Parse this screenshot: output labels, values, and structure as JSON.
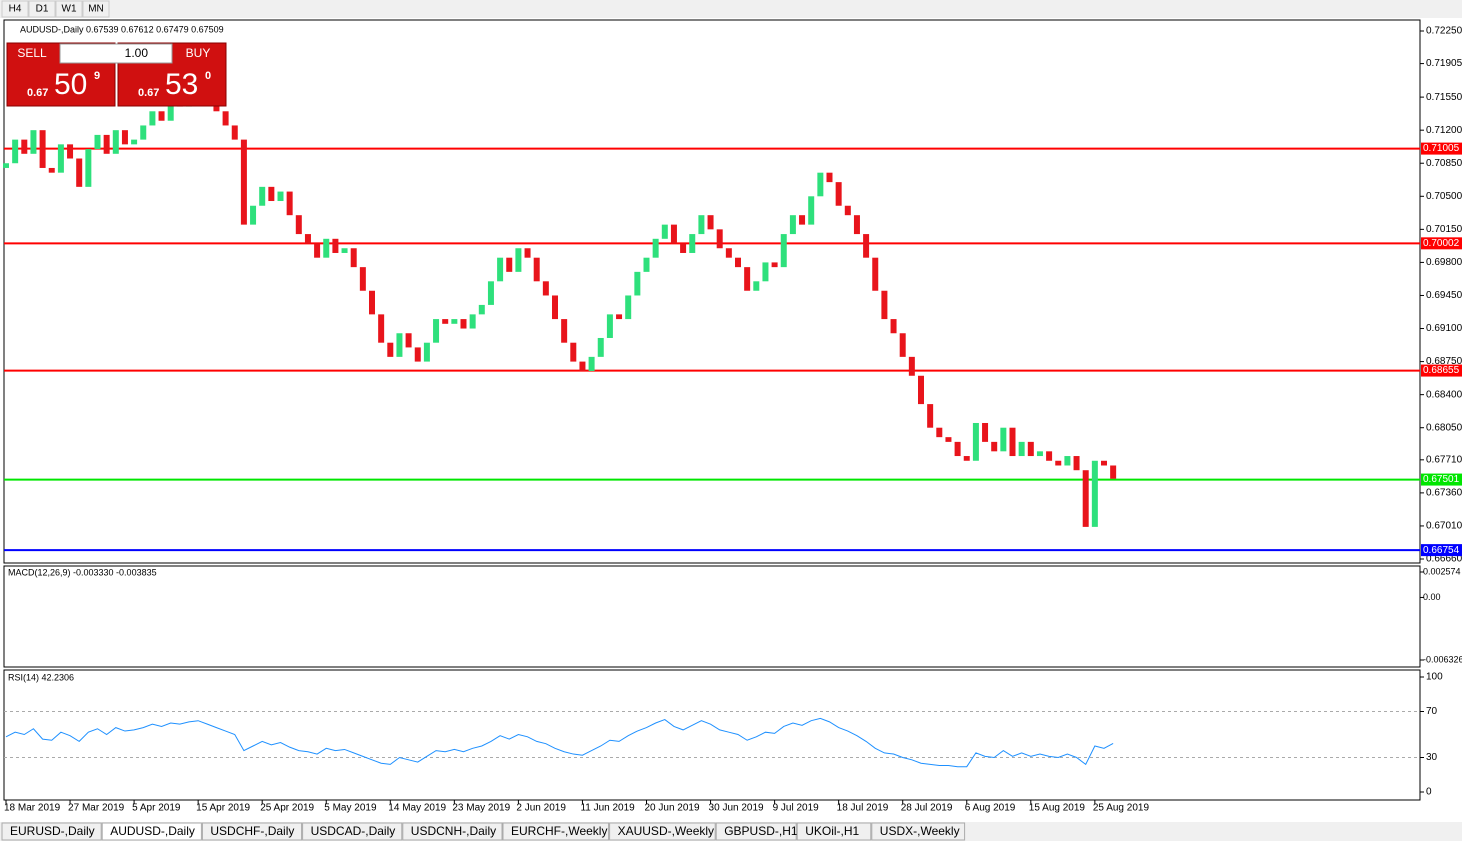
{
  "toolbar": {
    "timeframes": [
      "H4",
      "D1",
      "W1",
      "MN"
    ]
  },
  "trade_panel": {
    "sell_label": "SELL",
    "buy_label": "BUY",
    "lot": "1.00",
    "sell": {
      "prefix": "0.67",
      "big": "50",
      "sup": "9"
    },
    "buy": {
      "prefix": "0.67",
      "big": "53",
      "sup": "0"
    }
  },
  "chart_data": [
    {
      "type": "candlestick",
      "title": "AUDUSD-,Daily 0.67539 0.67612 0.67479 0.67509",
      "up_color": "#2ee07c",
      "down_color": "#e8141b",
      "open": [
        0.708,
        0.7085,
        0.711,
        0.7095,
        0.712,
        0.708,
        0.7075,
        0.7105,
        0.709,
        0.706,
        0.71,
        0.7115,
        0.7095,
        0.712,
        0.7105,
        0.711,
        0.7125,
        0.714,
        0.713,
        0.715,
        0.7145,
        0.7155,
        0.716,
        0.715,
        0.714,
        0.7125,
        0.711,
        0.702,
        0.704,
        0.706,
        0.7045,
        0.7055,
        0.703,
        0.701,
        0.7,
        0.6985,
        0.7005,
        0.699,
        0.6995,
        0.6975,
        0.695,
        0.6925,
        0.6895,
        0.688,
        0.6905,
        0.689,
        0.6875,
        0.6895,
        0.692,
        0.6915,
        0.692,
        0.691,
        0.6925,
        0.6935,
        0.696,
        0.6985,
        0.697,
        0.6995,
        0.6985,
        0.696,
        0.6945,
        0.692,
        0.6895,
        0.6875,
        0.6865,
        0.688,
        0.69,
        0.6925,
        0.692,
        0.6945,
        0.697,
        0.6985,
        0.7005,
        0.702,
        0.7,
        0.699,
        0.701,
        0.703,
        0.7015,
        0.6995,
        0.6985,
        0.6975,
        0.695,
        0.696,
        0.698,
        0.6975,
        0.701,
        0.703,
        0.702,
        0.705,
        0.7075,
        0.7065,
        0.704,
        0.703,
        0.701,
        0.6985,
        0.695,
        0.692,
        0.6905,
        0.688,
        0.686,
        0.683,
        0.6805,
        0.6795,
        0.679,
        0.6775,
        0.677,
        0.681,
        0.679,
        0.678,
        0.6805,
        0.6775,
        0.679,
        0.6775,
        0.678,
        0.677,
        0.6765,
        0.6775,
        0.676,
        0.67,
        0.677,
        0.6765
      ],
      "close": [
        0.7085,
        0.711,
        0.7095,
        0.712,
        0.708,
        0.7075,
        0.7105,
        0.709,
        0.706,
        0.71,
        0.7115,
        0.7095,
        0.712,
        0.7105,
        0.711,
        0.7125,
        0.714,
        0.713,
        0.715,
        0.7145,
        0.7155,
        0.716,
        0.715,
        0.714,
        0.7125,
        0.711,
        0.702,
        0.704,
        0.706,
        0.7045,
        0.7055,
        0.703,
        0.701,
        0.7,
        0.6985,
        0.7005,
        0.699,
        0.6995,
        0.6975,
        0.695,
        0.6925,
        0.6895,
        0.688,
        0.6905,
        0.689,
        0.6875,
        0.6895,
        0.692,
        0.6915,
        0.692,
        0.691,
        0.6925,
        0.6935,
        0.696,
        0.6985,
        0.697,
        0.6995,
        0.6985,
        0.696,
        0.6945,
        0.692,
        0.6895,
        0.6875,
        0.6865,
        0.688,
        0.69,
        0.6925,
        0.692,
        0.6945,
        0.697,
        0.6985,
        0.7005,
        0.702,
        0.7,
        0.699,
        0.701,
        0.703,
        0.7015,
        0.6995,
        0.6985,
        0.6975,
        0.695,
        0.696,
        0.698,
        0.6975,
        0.701,
        0.703,
        0.702,
        0.705,
        0.7075,
        0.7065,
        0.704,
        0.703,
        0.701,
        0.6985,
        0.695,
        0.692,
        0.6905,
        0.688,
        0.686,
        0.683,
        0.6805,
        0.6795,
        0.679,
        0.6775,
        0.677,
        0.681,
        0.679,
        0.678,
        0.6805,
        0.6775,
        0.679,
        0.6775,
        0.678,
        0.677,
        0.6765,
        0.6775,
        0.676,
        0.67,
        0.677,
        0.6765,
        0.6751
      ],
      "xticks": [
        {
          "value": 0,
          "label": "18 Mar 2019"
        },
        {
          "value": 7,
          "label": "27 Mar 2019"
        },
        {
          "value": 14,
          "label": "5 Apr 2019"
        },
        {
          "value": 21,
          "label": "15 Apr 2019"
        },
        {
          "value": 28,
          "label": "25 Apr 2019"
        },
        {
          "value": 35,
          "label": "5 May 2019"
        },
        {
          "value": 42,
          "label": "14 May 2019"
        },
        {
          "value": 49,
          "label": "23 May 2019"
        },
        {
          "value": 56,
          "label": "2 Jun 2019"
        },
        {
          "value": 63,
          "label": "11 Jun 2019"
        },
        {
          "value": 70,
          "label": "20 Jun 2019"
        },
        {
          "value": 77,
          "label": "30 Jun 2019"
        },
        {
          "value": 84,
          "label": "9 Jul 2019"
        },
        {
          "value": 91,
          "label": "18 Jul 2019"
        },
        {
          "value": 98,
          "label": "28 Jul 2019"
        },
        {
          "value": 105,
          "label": "6 Aug 2019"
        },
        {
          "value": 112,
          "label": "15 Aug 2019"
        },
        {
          "value": 119,
          "label": "25 Aug 2019"
        }
      ],
      "ylim": [
        0.6666,
        0.7225
      ],
      "yticks": [
        {
          "value": 0.7225,
          "label": "0.72250"
        },
        0.71905,
        {
          "value": 0.7155,
          "label": "0.71550"
        },
        {
          "value": 0.712,
          "label": "0.71200"
        },
        {
          "value": 0.7085,
          "label": "0.70850"
        },
        {
          "value": 0.705,
          "label": "0.70500"
        },
        {
          "value": 0.7015,
          "label": "0.70150"
        },
        {
          "value": 0.698,
          "label": "0.69800"
        },
        {
          "value": 0.6945,
          "label": "0.69450"
        },
        {
          "value": 0.691,
          "label": "0.69100"
        },
        {
          "value": 0.6875,
          "label": "0.68750"
        },
        {
          "value": 0.684,
          "label": "0.68400"
        },
        {
          "value": 0.6805,
          "label": "0.68050"
        },
        {
          "value": 0.6771,
          "label": "0.67710"
        },
        {
          "value": 0.6736,
          "label": "0.67360"
        },
        {
          "value": 0.6701,
          "label": "0.67010"
        },
        {
          "value": 0.6666,
          "label": "0.66660"
        }
      ],
      "levels": [
        {
          "value": 0.71005,
          "color": "#ff0000"
        },
        {
          "value": 0.70002,
          "color": "#ff0000"
        },
        {
          "value": 0.68655,
          "color": "#ff0000"
        },
        {
          "value": 0.67501,
          "color": "#00e600"
        },
        {
          "value": 0.66754,
          "color": "#0000ff"
        }
      ]
    },
    {
      "type": "indicator",
      "title": "MACD(12,26,9) -0.003330 -0.003835",
      "ylim": [
        -0.006326,
        0.002574
      ],
      "yticks": [
        0.002574,
        {
          "value": 0,
          "label": "0.00"
        },
        -0.006326
      ]
    },
    {
      "type": "line",
      "title": "RSI(14) 42.2306",
      "color": "#1e90ff",
      "values": [
        48,
        52,
        50,
        55,
        46,
        45,
        52,
        49,
        44,
        52,
        55,
        50,
        56,
        53,
        54,
        56,
        59,
        57,
        60,
        59,
        61,
        62,
        59,
        56,
        53,
        50,
        36,
        40,
        44,
        41,
        43,
        39,
        36,
        35,
        33,
        38,
        36,
        37,
        34,
        31,
        28,
        25,
        24,
        30,
        28,
        26,
        31,
        36,
        35,
        37,
        35,
        38,
        40,
        44,
        49,
        46,
        50,
        48,
        44,
        42,
        38,
        35,
        33,
        32,
        36,
        40,
        45,
        44,
        49,
        53,
        56,
        60,
        63,
        57,
        54,
        58,
        62,
        59,
        54,
        52,
        50,
        45,
        48,
        52,
        51,
        57,
        60,
        58,
        62,
        64,
        61,
        56,
        53,
        49,
        44,
        38,
        34,
        33,
        30,
        28,
        25,
        24,
        23,
        23,
        22,
        22,
        34,
        31,
        30,
        36,
        31,
        34,
        31,
        33,
        31,
        30,
        33,
        30,
        24,
        40,
        38,
        42.23
      ],
      "ylim": [
        0,
        100
      ],
      "yticks": [
        100,
        70,
        30,
        0
      ],
      "levels": [
        70,
        30
      ]
    }
  ],
  "tabs": [
    "EURUSD-,Daily",
    "AUDUSD-,Daily",
    "USDCHF-,Daily",
    "USDCAD-,Daily",
    "USDCNH-,Daily",
    "EURCHF-,Weekly",
    "XAUUSD-,Weekly",
    "GBPUSD-,H1",
    "UKOil-,H1",
    "USDX-,Weekly"
  ]
}
